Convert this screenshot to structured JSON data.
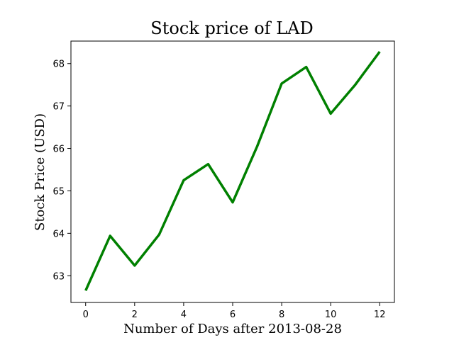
{
  "chart_data": {
    "type": "line",
    "title": "Stock price of LAD",
    "xlabel": "Number of Days after 2013-08-28",
    "ylabel": "Stock Price (USD)",
    "xlim": [
      -0.6,
      12.6
    ],
    "ylim": [
      62.37,
      68.53
    ],
    "xticks": [
      0,
      2,
      4,
      6,
      8,
      10,
      12
    ],
    "yticks": [
      63,
      64,
      65,
      66,
      67,
      68
    ],
    "grid": false,
    "series": [
      {
        "color": "#008000",
        "x": [
          0,
          1,
          2,
          3,
          4,
          5,
          6,
          7,
          8,
          9,
          10,
          11,
          12
        ],
        "y": [
          62.65,
          63.94,
          63.24,
          63.97,
          65.25,
          65.63,
          64.73,
          66.05,
          67.53,
          67.92,
          66.82,
          67.5,
          68.28
        ]
      }
    ]
  }
}
